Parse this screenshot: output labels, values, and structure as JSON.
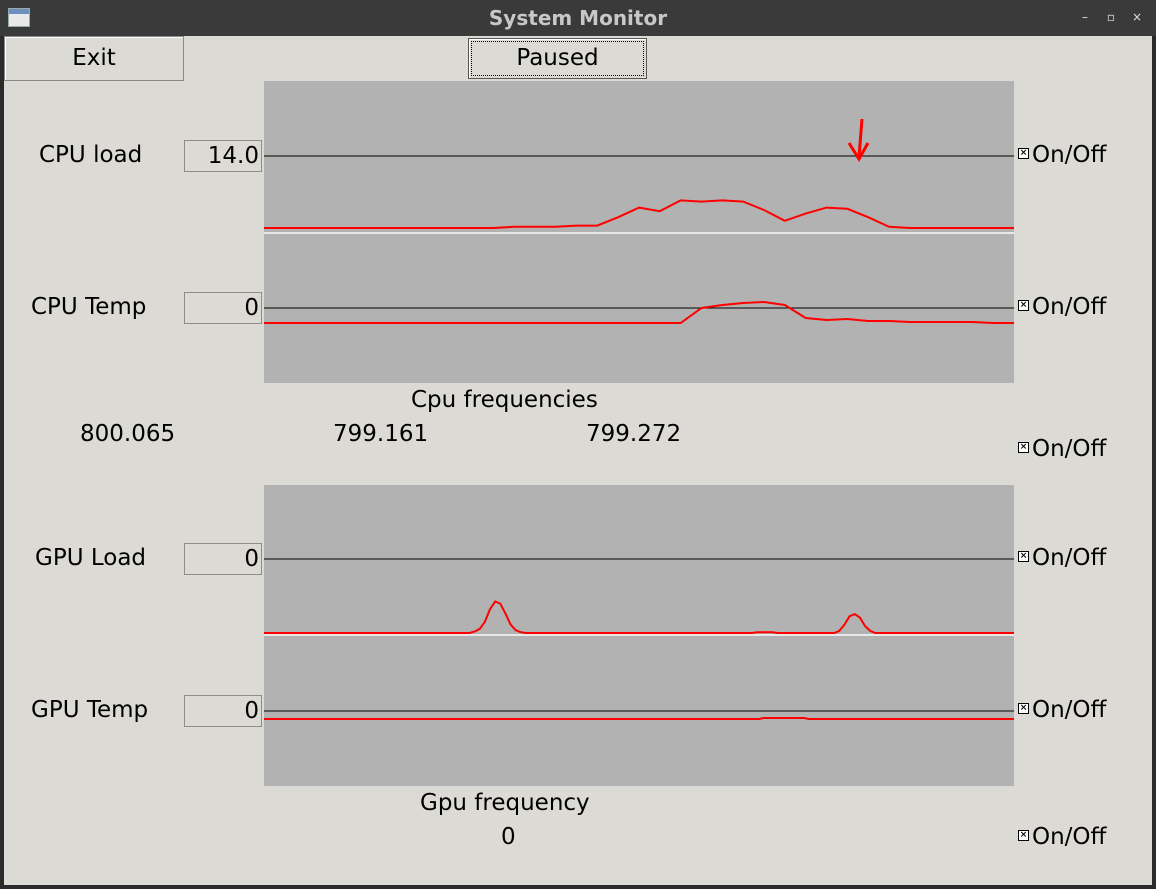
{
  "window": {
    "title": "System Monitor",
    "controls": [
      "–",
      "▫",
      "×"
    ]
  },
  "toolbar": {
    "exit_label": "Exit",
    "pause_label": "Paused"
  },
  "cpu": {
    "load_label": "CPU load",
    "load_value": "14.0",
    "temp_label": "CPU Temp",
    "temp_value": "0",
    "frequencies_label": "Cpu frequencies",
    "frequencies": [
      "800.065",
      "799.161",
      "799.272"
    ]
  },
  "gpu": {
    "load_label": "GPU Load",
    "load_value": "0",
    "temp_label": "GPU Temp",
    "temp_value": "0",
    "frequency_label": "Gpu frequency",
    "frequency_value": "0"
  },
  "toggles": {
    "label": "On/Off",
    "mark": "×"
  },
  "colors": {
    "graph_bg": "#b2b2b2",
    "trace": "#ff0000",
    "baseline": "#e8e8e8",
    "threshold": "#000000",
    "client_bg": "#dcdad5"
  },
  "chart_data": [
    {
      "type": "line",
      "series": [
        {
          "values": [
            0,
            0,
            0,
            0,
            0,
            0,
            0,
            0,
            0,
            0,
            0,
            0,
            1,
            1,
            1,
            2,
            2,
            9,
            17,
            14,
            23,
            22,
            23,
            22,
            15,
            6,
            12,
            17,
            16,
            9,
            1,
            0,
            0,
            0,
            0,
            0,
            0
          ]
        },
        {
          "values": [
            0,
            0,
            0,
            0,
            0,
            0,
            0,
            0,
            0,
            0,
            0,
            0,
            0,
            0,
            0,
            0,
            0,
            0,
            0,
            0,
            0,
            15,
            18,
            20,
            21,
            18,
            5,
            3,
            4,
            2,
            2,
            1,
            1,
            1,
            1,
            0,
            0
          ]
        }
      ]
    },
    {
      "type": "line",
      "series": [
        {
          "values": [
            0,
            0,
            0,
            0,
            0,
            0,
            0,
            0,
            0,
            0,
            0,
            0,
            0,
            0,
            0,
            0,
            0,
            0,
            0,
            0,
            0,
            0,
            0,
            0,
            0,
            0,
            0,
            0,
            0,
            0,
            0,
            0,
            0,
            0,
            0,
            0,
            0,
            0,
            0,
            0,
            0,
            2,
            6,
            16,
            34,
            45,
            42,
            28,
            12,
            4,
            1,
            0,
            0,
            0,
            0,
            0,
            0,
            0,
            0,
            0,
            0,
            0,
            0,
            0,
            0,
            0,
            0,
            0,
            0,
            0,
            0,
            0,
            0,
            0,
            0,
            0,
            0,
            0,
            0,
            0,
            0,
            0,
            0,
            0,
            0,
            0,
            0,
            0,
            0,
            0,
            0,
            0,
            0,
            0,
            0,
            0,
            1,
            1,
            1,
            1,
            0,
            0,
            0,
            0,
            0,
            0,
            0,
            0,
            0,
            0,
            0,
            0,
            3,
            12,
            24,
            27,
            22,
            10,
            3,
            0,
            0,
            0,
            0,
            0,
            0,
            0,
            0,
            0,
            0,
            0,
            0,
            0,
            0,
            0,
            0,
            0,
            0,
            0,
            0,
            0,
            0,
            0,
            0,
            0,
            0,
            0,
            0
          ]
        },
        {
          "values": [
            0,
            0,
            0,
            0,
            0,
            0,
            0,
            0,
            0,
            0,
            0,
            0,
            0,
            0,
            0,
            0,
            0,
            0,
            0,
            0,
            0,
            0,
            0,
            0,
            0,
            0,
            0,
            0,
            0,
            0,
            0,
            0,
            0,
            0,
            0,
            0,
            0,
            0,
            0,
            0,
            0,
            0,
            0,
            0,
            0,
            0,
            0,
            0,
            0,
            0,
            0,
            0,
            0,
            0,
            0,
            0,
            0,
            0,
            0,
            0,
            0,
            0,
            0,
            0,
            0,
            0,
            0,
            0,
            0,
            0,
            0,
            0,
            0,
            0,
            0,
            0,
            0,
            0,
            0,
            0,
            0,
            0,
            0,
            0,
            0,
            0,
            0,
            0,
            0,
            0,
            0,
            0,
            0,
            0,
            0,
            0,
            0,
            0,
            0,
            0,
            1,
            1,
            1,
            1,
            1,
            1,
            1,
            1,
            1,
            0,
            0,
            0,
            0,
            0,
            0,
            0,
            0,
            0,
            0,
            0,
            0,
            0,
            0,
            0,
            0,
            0,
            0,
            0,
            0,
            0,
            0,
            0,
            0,
            0,
            0,
            0,
            0,
            0,
            0,
            0,
            0,
            0,
            0,
            0,
            0,
            0,
            0,
            0,
            0,
            0,
            0
          ]
        }
      ]
    }
  ]
}
